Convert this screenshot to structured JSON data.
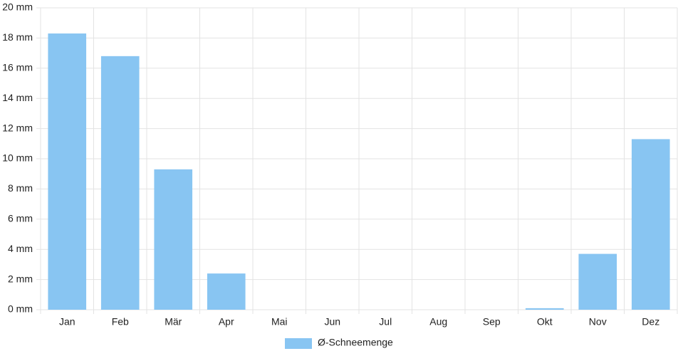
{
  "chart_data": {
    "type": "bar",
    "categories": [
      "Jan",
      "Feb",
      "Mär",
      "Apr",
      "Mai",
      "Jun",
      "Jul",
      "Aug",
      "Sep",
      "Okt",
      "Nov",
      "Dez"
    ],
    "series": [
      {
        "name": "Ø-Schneemenge",
        "color": "#88c5f2",
        "values": [
          18.3,
          16.8,
          9.3,
          2.4,
          0,
          0,
          0,
          0,
          0,
          0.1,
          3.7,
          11.3
        ]
      }
    ],
    "ylim": [
      0,
      20
    ],
    "yticks": [
      {
        "value": 0,
        "label": "0 mm"
      },
      {
        "value": 2,
        "label": "2 mm"
      },
      {
        "value": 4,
        "label": "4 mm"
      },
      {
        "value": 6,
        "label": "6 mm"
      },
      {
        "value": 8,
        "label": "8 mm"
      },
      {
        "value": 10,
        "label": "10 mm"
      },
      {
        "value": 12,
        "label": "12 mm"
      },
      {
        "value": 14,
        "label": "14 mm"
      },
      {
        "value": 16,
        "label": "16 mm"
      },
      {
        "value": 18,
        "label": "18 mm"
      },
      {
        "value": 20,
        "label": "20 mm"
      }
    ],
    "grid": true,
    "legend": "bottom"
  }
}
